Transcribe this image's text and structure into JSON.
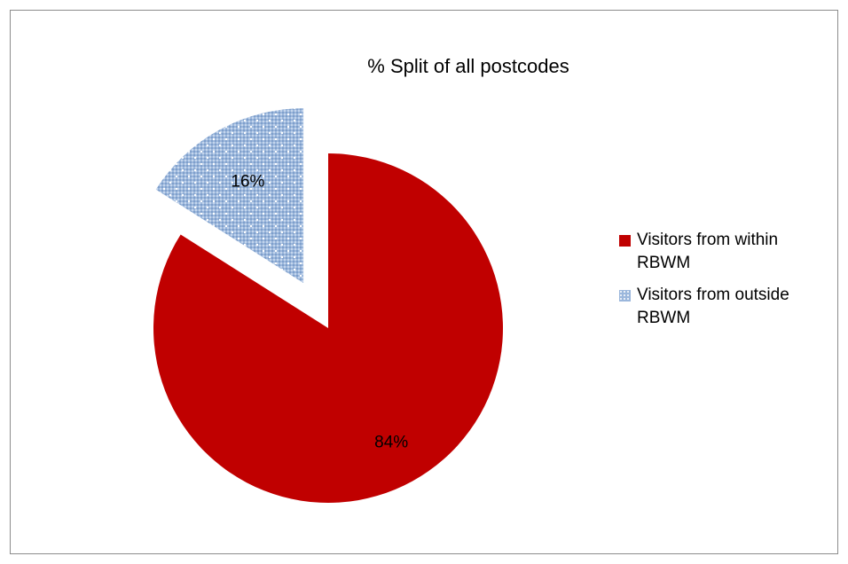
{
  "chart_data": {
    "type": "pie",
    "title": "% Split of all postcodes",
    "slices": [
      {
        "name": "Visitors from within RBWM",
        "value": 84,
        "label": "84%",
        "color": "#c00000",
        "pattern": "solid",
        "exploded": false
      },
      {
        "name": "Visitors from outside RBWM",
        "value": 16,
        "label": "16%",
        "color": "#9bb7dc",
        "pattern": "dotted",
        "exploded": true
      }
    ],
    "legend": {
      "position": "right",
      "entries": [
        {
          "line1": "Visitors from within",
          "line2": "RBWM",
          "color": "#c00000",
          "pattern": "solid"
        },
        {
          "line1": "Visitors from outside",
          "line2": "RBWM",
          "color": "#9bb7dc",
          "pattern": "dotted"
        }
      ]
    }
  }
}
